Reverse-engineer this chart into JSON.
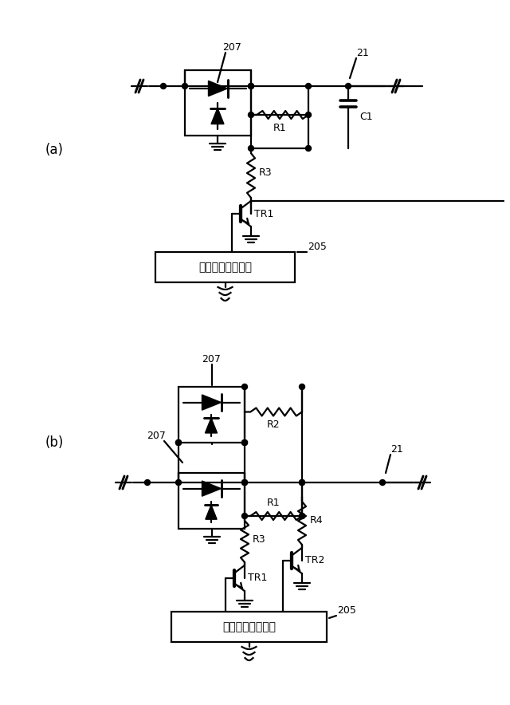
{
  "bg_color": "#ffffff",
  "line_color": "#000000",
  "label_a": "(a)",
  "label_b": "(b)",
  "box_text": "オンオフ制御回路",
  "label_205": "205",
  "label_207a": "207",
  "label_207b": "207",
  "label_207c": "207",
  "label_21a": "21",
  "label_21b": "21",
  "label_C1": "C1",
  "label_R1a": "R1",
  "label_R1b": "R1",
  "label_R2": "R2",
  "label_R3a": "R3",
  "label_R3b": "R3",
  "label_R4": "R4",
  "label_TR1a": "TR1",
  "label_TR1b": "TR1",
  "label_TR2": "TR2",
  "lw": 1.6,
  "dot_r": 3.5
}
